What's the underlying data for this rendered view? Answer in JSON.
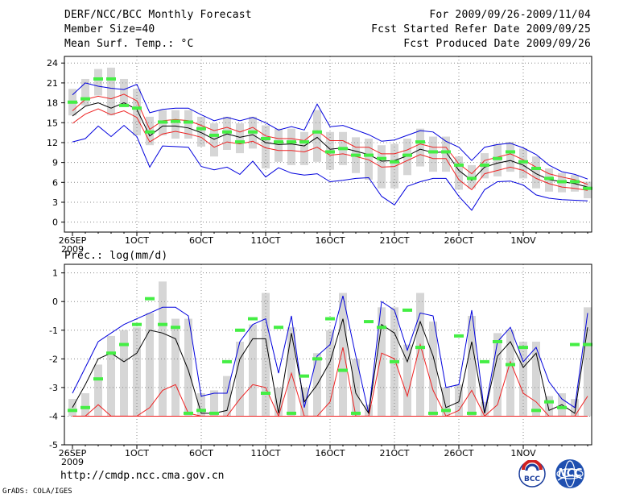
{
  "header": {
    "title": "DERF/NCC/BCC Monthly Forecast",
    "member_size": "Member Size=40",
    "variable": "Mean Surf. Temp.: °C",
    "period": "For 2009/09/26-2009/11/04",
    "started": "Fcst Started Refer Date 2009/09/25",
    "produced": "Fcst Produced Date 2009/09/26"
  },
  "precip_label": "Prec.: log(mm/d)",
  "footer": {
    "url": "http://cmdp.ncc.cma.gov.cn",
    "grads": "GrADS: COLA/IGES",
    "logo_bcc": "BCC",
    "logo_ncc": "NCC"
  },
  "colors": {
    "box": "#d6d6d6",
    "median": "#44ee44",
    "mean": "#000000",
    "inner": "#ee2222",
    "outer": "#0000dd",
    "grid": "#888888"
  },
  "chart_data": [
    {
      "type": "line",
      "title": "Mean Surf. Temp.: °C",
      "ylim": [
        -1.5,
        25
      ],
      "yticks": [
        0,
        3,
        6,
        9,
        12,
        15,
        18,
        21,
        24
      ],
      "ytick_labels": [
        "0",
        "3",
        "6",
        "9",
        "12",
        "15",
        "18",
        "21",
        "24"
      ],
      "x_days": 40,
      "xticks": [
        {
          "day": 0,
          "label": "26SEP",
          "sub": "2009"
        },
        {
          "day": 5,
          "label": "1OCT"
        },
        {
          "day": 10,
          "label": "6OCT"
        },
        {
          "day": 15,
          "label": "11OCT"
        },
        {
          "day": 20,
          "label": "16OCT"
        },
        {
          "day": 25,
          "label": "21OCT"
        },
        {
          "day": 30,
          "label": "26OCT"
        },
        {
          "day": 35,
          "label": "1NOV"
        }
      ],
      "series": [
        {
          "name": "upper envelope",
          "values": [
            19.2,
            21.0,
            20.5,
            20.2,
            20.0,
            20.8,
            16.5,
            17.0,
            17.2,
            17.2,
            16.2,
            15.3,
            15.8,
            15.3,
            15.8,
            15.0,
            13.9,
            14.4,
            13.9,
            17.8,
            14.4,
            14.6,
            13.9,
            13.2,
            12.2,
            12.4,
            13.1,
            13.8,
            13.6,
            12.2,
            11.3,
            9.3,
            11.3,
            11.7,
            11.9,
            11.2,
            10.2,
            8.6,
            7.6,
            7.2,
            6.5
          ]
        },
        {
          "name": "upper inner",
          "values": [
            16.8,
            18.5,
            19.0,
            18.6,
            19.3,
            18.3,
            14.0,
            15.3,
            15.5,
            15.3,
            14.6,
            13.8,
            14.3,
            13.6,
            14.3,
            13.0,
            12.6,
            12.6,
            12.3,
            13.8,
            12.3,
            12.3,
            11.3,
            11.3,
            10.3,
            10.3,
            10.9,
            11.8,
            11.3,
            11.3,
            8.8,
            7.3,
            9.3,
            9.8,
            10.3,
            9.4,
            8.3,
            7.3,
            6.8,
            6.4,
            5.7
          ]
        },
        {
          "name": "ensemble mean",
          "values": [
            16.0,
            17.5,
            18.0,
            17.2,
            18.0,
            17.0,
            13.0,
            14.5,
            14.5,
            14.2,
            13.5,
            12.5,
            13.3,
            12.8,
            13.2,
            12.0,
            11.7,
            11.8,
            11.5,
            12.8,
            11.0,
            11.2,
            10.7,
            10.2,
            9.2,
            9.3,
            10.0,
            11.0,
            10.5,
            10.6,
            7.8,
            6.3,
            8.3,
            8.9,
            9.3,
            8.6,
            7.3,
            6.4,
            6.1,
            5.8,
            5.3
          ]
        },
        {
          "name": "lower inner",
          "values": [
            14.9,
            16.3,
            17.1,
            16.2,
            16.8,
            15.8,
            12.1,
            13.3,
            13.7,
            13.3,
            12.8,
            11.3,
            12.1,
            11.8,
            12.2,
            11.2,
            10.8,
            10.8,
            10.6,
            11.3,
            10.1,
            10.3,
            9.9,
            9.4,
            8.3,
            8.4,
            9.3,
            10.2,
            9.6,
            9.6,
            6.4,
            4.9,
            7.3,
            7.8,
            8.3,
            7.8,
            6.6,
            5.8,
            5.3,
            5.1,
            4.8
          ]
        },
        {
          "name": "lower envelope",
          "values": [
            12.1,
            12.6,
            14.5,
            12.9,
            14.6,
            12.9,
            8.3,
            11.5,
            11.4,
            11.3,
            8.4,
            7.9,
            8.3,
            7.2,
            9.2,
            6.8,
            8.2,
            7.4,
            7.1,
            7.3,
            6.1,
            6.3,
            6.6,
            6.7,
            3.9,
            2.6,
            5.4,
            6.1,
            6.6,
            6.6,
            3.9,
            1.8,
            4.9,
            6.1,
            6.2,
            5.6,
            4.1,
            3.6,
            3.4,
            3.3,
            3.2
          ]
        },
        {
          "name": "box top",
          "values": [
            20.1,
            21.6,
            23.1,
            23.3,
            21.6,
            20.1,
            15.9,
            16.9,
            16.9,
            16.9,
            15.9,
            14.9,
            15.9,
            14.9,
            15.9,
            14.6,
            14.1,
            14.1,
            13.6,
            16.9,
            13.6,
            13.6,
            12.8,
            12.6,
            11.6,
            11.8,
            12.6,
            14.1,
            12.9,
            12.9,
            9.9,
            8.6,
            10.4,
            11.8,
            12.1,
            11.1,
            9.9,
            8.1,
            7.4,
            7.1,
            6.1
          ]
        },
        {
          "name": "box bottom",
          "values": [
            16.1,
            17.6,
            19.1,
            16.1,
            17.6,
            13.1,
            11.6,
            13.1,
            12.6,
            12.6,
            11.4,
            9.9,
            10.9,
            10.4,
            11.1,
            8.1,
            9.1,
            8.6,
            8.6,
            9.1,
            7.9,
            8.6,
            7.4,
            6.4,
            5.1,
            5.1,
            7.1,
            8.4,
            7.6,
            7.6,
            4.9,
            5.1,
            6.6,
            6.9,
            7.6,
            6.6,
            5.1,
            4.6,
            4.5,
            4.6,
            3.6
          ]
        },
        {
          "name": "median",
          "values": [
            18.1,
            18.6,
            21.6,
            21.6,
            17.6,
            17.2,
            13.6,
            15.1,
            15.2,
            15.1,
            14.1,
            13.1,
            13.6,
            12.1,
            13.6,
            12.6,
            12.1,
            12.1,
            12.1,
            13.6,
            10.6,
            11.1,
            10.1,
            10.1,
            9.6,
            9.1,
            10.1,
            12.1,
            10.6,
            10.6,
            8.6,
            6.6,
            8.6,
            9.6,
            10.6,
            9.1,
            8.1,
            6.6,
            6.1,
            6.1,
            5.1
          ]
        }
      ]
    },
    {
      "type": "line",
      "title": "Prec.: log(mm/d)",
      "ylim": [
        -5,
        1.3
      ],
      "yticks": [
        -5,
        -4,
        -3,
        -2,
        -1,
        0,
        1
      ],
      "ytick_labels": [
        "-5",
        "-4",
        "-3",
        "-2",
        "-1",
        "0",
        "1"
      ],
      "x_days": 40,
      "xticks": [
        {
          "day": 0,
          "label": "26SEP",
          "sub": "2009"
        },
        {
          "day": 5,
          "label": "1OCT"
        },
        {
          "day": 10,
          "label": "6OCT"
        },
        {
          "day": 15,
          "label": "11OCT"
        },
        {
          "day": 20,
          "label": "16OCT"
        },
        {
          "day": 25,
          "label": "21OCT"
        },
        {
          "day": 30,
          "label": "26OCT"
        },
        {
          "day": 35,
          "label": "1NOV"
        }
      ],
      "series": [
        {
          "name": "upper envelope",
          "values": [
            -3.2,
            -2.3,
            -1.4,
            -1.1,
            -0.8,
            -0.6,
            -0.4,
            -0.2,
            -0.2,
            -0.5,
            -3.3,
            -3.2,
            -3.2,
            -1.4,
            -0.8,
            -0.6,
            -2.5,
            -0.5,
            -3.7,
            -1.9,
            -1.5,
            0.2,
            -1.9,
            -3.9,
            0.0,
            -0.3,
            -1.7,
            -0.4,
            -0.5,
            -3.0,
            -2.9,
            -0.3,
            -3.9,
            -1.4,
            -0.9,
            -2.1,
            -1.6,
            -2.8,
            -3.4,
            -3.7,
            -0.4
          ]
        },
        {
          "name": "ensemble mean",
          "values": [
            -3.7,
            -2.9,
            -2.0,
            -1.8,
            -2.1,
            -1.8,
            -1.0,
            -1.1,
            -1.3,
            -2.4,
            -3.9,
            -3.9,
            -3.8,
            -2.0,
            -1.3,
            -1.3,
            -3.9,
            -1.1,
            -3.5,
            -2.9,
            -2.1,
            -0.6,
            -3.2,
            -3.9,
            -0.8,
            -1.1,
            -2.1,
            -0.7,
            -1.9,
            -3.7,
            -3.5,
            -1.4,
            -3.9,
            -1.9,
            -1.4,
            -2.3,
            -1.8,
            -3.8,
            -3.6,
            -3.9,
            -0.9
          ]
        },
        {
          "name": "lower inner",
          "values": [
            -4.0,
            -4.0,
            -3.6,
            -4.0,
            -4.0,
            -4.0,
            -3.7,
            -3.1,
            -2.9,
            -3.9,
            -4.0,
            -4.0,
            -4.0,
            -3.4,
            -2.9,
            -3.0,
            -4.0,
            -2.5,
            -4.0,
            -4.0,
            -3.5,
            -1.6,
            -4.0,
            -4.0,
            -1.8,
            -2.0,
            -3.3,
            -1.5,
            -3.1,
            -4.0,
            -3.8,
            -3.1,
            -4.0,
            -3.6,
            -2.1,
            -3.2,
            -3.5,
            -4.0,
            -4.0,
            -4.0,
            -3.3
          ]
        },
        {
          "name": "box top",
          "values": [
            -3.4,
            -3.2,
            -2.2,
            -1.2,
            -1.0,
            -0.9,
            -0.4,
            0.7,
            -0.6,
            -0.6,
            -3.2,
            -3.1,
            -2.6,
            -1.4,
            -0.8,
            0.3,
            -3.0,
            -0.9,
            -3.0,
            -1.8,
            -1.0,
            0.3,
            -2.0,
            -3.6,
            -0.2,
            -0.2,
            -1.5,
            0.3,
            -0.7,
            -3.0,
            -2.9,
            -0.5,
            -3.5,
            -1.1,
            -1.0,
            -1.4,
            -1.4,
            -3.3,
            -3.2,
            -3.4,
            -0.2
          ]
        },
        {
          "name": "median",
          "values": [
            -3.8,
            -3.7,
            -2.7,
            -1.8,
            -1.5,
            -0.8,
            0.1,
            -0.8,
            -0.9,
            -3.9,
            -3.8,
            -3.9,
            -2.1,
            -1.0,
            -0.6,
            -3.2,
            -0.9,
            -3.9,
            -2.6,
            -2.0,
            -0.6,
            -2.4,
            -3.9,
            -0.7,
            -0.9,
            -2.1,
            -0.3,
            -1.6,
            -3.9,
            -3.8,
            -1.2,
            -3.9,
            -2.1,
            -1.4,
            -2.2,
            -1.6,
            -3.8,
            -3.5,
            -3.7,
            -1.5,
            -1.5
          ]
        }
      ]
    }
  ]
}
